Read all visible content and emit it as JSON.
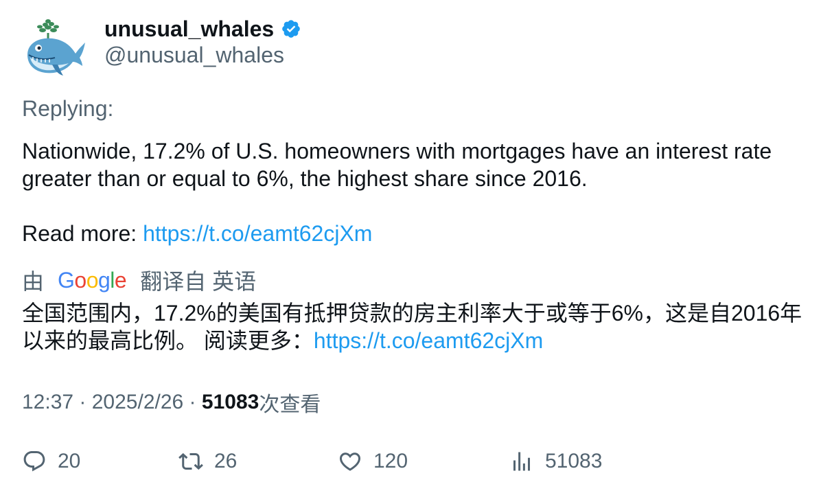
{
  "author": {
    "display_name": "unusual_whales",
    "handle": "@unusual_whales",
    "verified_color": "#1d9bf0"
  },
  "replying_label": "Replying:",
  "tweet": {
    "text": "Nationwide, 17.2% of U.S. homeowners with mortgages have an interest rate greater than or equal to 6%, the highest share since 2016.",
    "read_more_label": "Read more: ",
    "link": "https://t.co/eamt62cjXm"
  },
  "translation": {
    "by_label": "由",
    "provider": "Google",
    "from_label": "翻译自 英语",
    "text": "全国范围内，17.2%的美国有抵押贷款的房主利率大于或等于6%，这是自2016年以来的最高比例。 阅读更多：",
    "link": "https://t.co/eamt62cjXm"
  },
  "meta": {
    "time": "12:37",
    "separator": " · ",
    "date": "2025/2/26",
    "views_count": "51083",
    "views_label": "次查看"
  },
  "actions": {
    "replies": "20",
    "retweets": "26",
    "likes": "120",
    "views": "51083"
  },
  "colors": {
    "text": "#0f1419",
    "secondary": "#536471",
    "link": "#1d9bf0"
  }
}
